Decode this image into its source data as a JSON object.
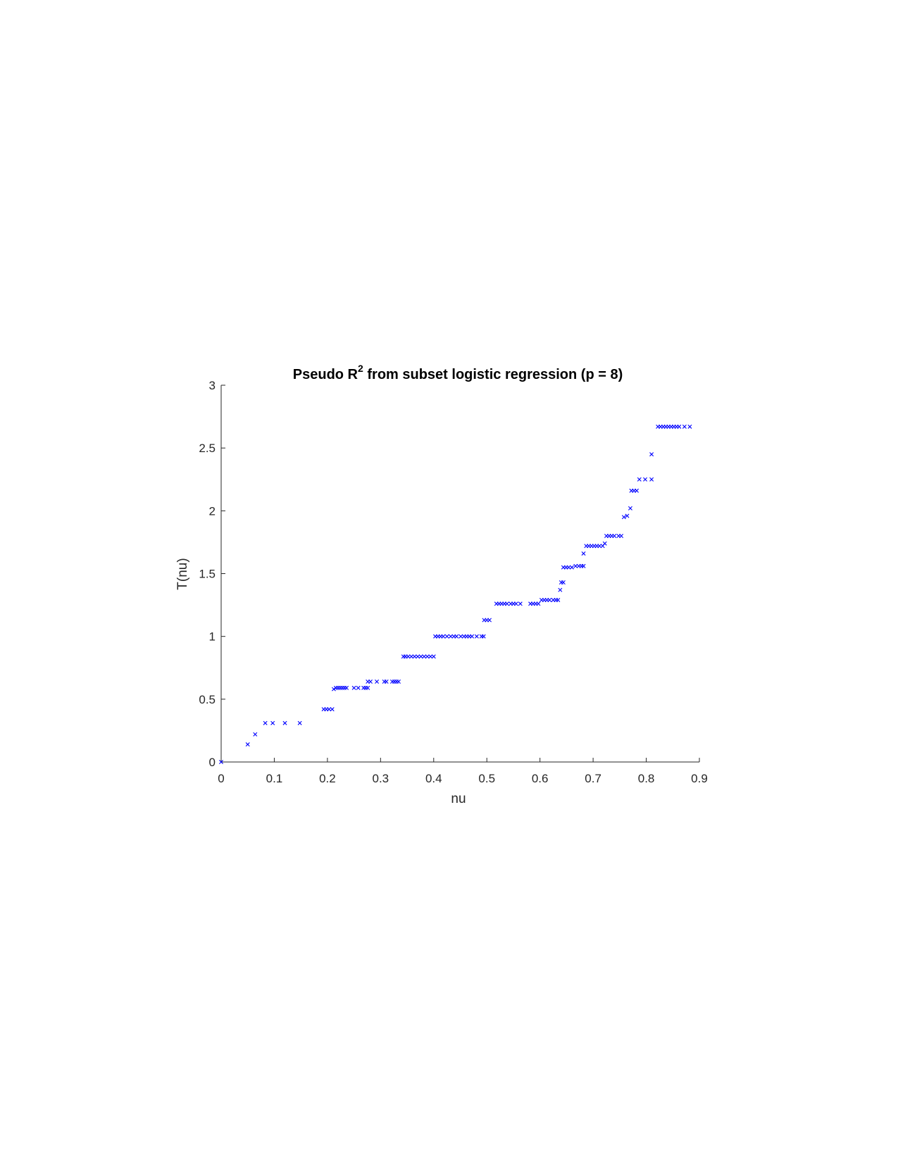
{
  "chart_data": {
    "type": "scatter",
    "title": {
      "prefix": "Pseudo R",
      "superscript": "2",
      "suffix": " from subset logistic regression (p = 8)"
    },
    "xlabel": "nu",
    "ylabel": "T(nu)",
    "xlim": [
      0,
      0.9
    ],
    "ylim": [
      0,
      3
    ],
    "x_ticks": [
      "0",
      "0.1",
      "0.2",
      "0.3",
      "0.4",
      "0.5",
      "0.6",
      "0.7",
      "0.8",
      "0.9"
    ],
    "y_ticks": [
      "0",
      "0.5",
      "1",
      "1.5",
      "2",
      "2.5",
      "3"
    ],
    "grid": false,
    "marker": "x",
    "marker_color": "#0000ff",
    "points": [
      [
        0.0,
        0.0
      ],
      [
        0.05,
        0.14
      ],
      [
        0.064,
        0.22
      ],
      [
        0.083,
        0.31
      ],
      [
        0.097,
        0.31
      ],
      [
        0.12,
        0.31
      ],
      [
        0.148,
        0.31
      ],
      [
        0.193,
        0.42
      ],
      [
        0.198,
        0.42
      ],
      [
        0.203,
        0.42
      ],
      [
        0.209,
        0.42
      ],
      [
        0.212,
        0.58
      ],
      [
        0.216,
        0.59
      ],
      [
        0.22,
        0.59
      ],
      [
        0.224,
        0.59
      ],
      [
        0.228,
        0.59
      ],
      [
        0.232,
        0.59
      ],
      [
        0.236,
        0.59
      ],
      [
        0.25,
        0.59
      ],
      [
        0.258,
        0.59
      ],
      [
        0.268,
        0.59
      ],
      [
        0.272,
        0.59
      ],
      [
        0.276,
        0.59
      ],
      [
        0.276,
        0.64
      ],
      [
        0.281,
        0.64
      ],
      [
        0.293,
        0.64
      ],
      [
        0.307,
        0.64
      ],
      [
        0.311,
        0.64
      ],
      [
        0.322,
        0.64
      ],
      [
        0.326,
        0.64
      ],
      [
        0.33,
        0.64
      ],
      [
        0.334,
        0.64
      ],
      [
        0.343,
        0.84
      ],
      [
        0.347,
        0.84
      ],
      [
        0.352,
        0.84
      ],
      [
        0.358,
        0.84
      ],
      [
        0.364,
        0.84
      ],
      [
        0.37,
        0.84
      ],
      [
        0.376,
        0.84
      ],
      [
        0.382,
        0.84
      ],
      [
        0.388,
        0.84
      ],
      [
        0.394,
        0.84
      ],
      [
        0.4,
        0.84
      ],
      [
        0.403,
        1.0
      ],
      [
        0.408,
        1.0
      ],
      [
        0.413,
        1.0
      ],
      [
        0.418,
        1.0
      ],
      [
        0.425,
        1.0
      ],
      [
        0.432,
        1.0
      ],
      [
        0.438,
        1.0
      ],
      [
        0.443,
        1.0
      ],
      [
        0.451,
        1.0
      ],
      [
        0.457,
        1.0
      ],
      [
        0.462,
        1.0
      ],
      [
        0.467,
        1.0
      ],
      [
        0.472,
        1.0
      ],
      [
        0.481,
        1.0
      ],
      [
        0.49,
        1.0
      ],
      [
        0.494,
        1.0
      ],
      [
        0.495,
        1.13
      ],
      [
        0.5,
        1.13
      ],
      [
        0.505,
        1.13
      ],
      [
        0.518,
        1.26
      ],
      [
        0.523,
        1.26
      ],
      [
        0.528,
        1.26
      ],
      [
        0.533,
        1.26
      ],
      [
        0.538,
        1.26
      ],
      [
        0.545,
        1.26
      ],
      [
        0.55,
        1.26
      ],
      [
        0.555,
        1.26
      ],
      [
        0.563,
        1.26
      ],
      [
        0.582,
        1.26
      ],
      [
        0.587,
        1.26
      ],
      [
        0.592,
        1.26
      ],
      [
        0.597,
        1.26
      ],
      [
        0.603,
        1.29
      ],
      [
        0.608,
        1.29
      ],
      [
        0.613,
        1.29
      ],
      [
        0.618,
        1.29
      ],
      [
        0.625,
        1.29
      ],
      [
        0.63,
        1.29
      ],
      [
        0.634,
        1.29
      ],
      [
        0.638,
        1.37
      ],
      [
        0.64,
        1.43
      ],
      [
        0.644,
        1.43
      ],
      [
        0.644,
        1.55
      ],
      [
        0.649,
        1.55
      ],
      [
        0.654,
        1.55
      ],
      [
        0.66,
        1.55
      ],
      [
        0.667,
        1.56
      ],
      [
        0.673,
        1.56
      ],
      [
        0.678,
        1.56
      ],
      [
        0.682,
        1.56
      ],
      [
        0.682,
        1.66
      ],
      [
        0.687,
        1.72
      ],
      [
        0.692,
        1.72
      ],
      [
        0.697,
        1.72
      ],
      [
        0.702,
        1.72
      ],
      [
        0.707,
        1.72
      ],
      [
        0.712,
        1.72
      ],
      [
        0.718,
        1.72
      ],
      [
        0.722,
        1.74
      ],
      [
        0.725,
        1.8
      ],
      [
        0.73,
        1.8
      ],
      [
        0.735,
        1.8
      ],
      [
        0.74,
        1.8
      ],
      [
        0.748,
        1.8
      ],
      [
        0.753,
        1.8
      ],
      [
        0.758,
        1.95
      ],
      [
        0.764,
        1.96
      ],
      [
        0.77,
        2.02
      ],
      [
        0.772,
        2.16
      ],
      [
        0.777,
        2.16
      ],
      [
        0.782,
        2.16
      ],
      [
        0.787,
        2.25
      ],
      [
        0.798,
        2.25
      ],
      [
        0.81,
        2.25
      ],
      [
        0.81,
        2.45
      ],
      [
        0.822,
        2.67
      ],
      [
        0.827,
        2.67
      ],
      [
        0.832,
        2.67
      ],
      [
        0.837,
        2.67
      ],
      [
        0.842,
        2.67
      ],
      [
        0.847,
        2.67
      ],
      [
        0.852,
        2.67
      ],
      [
        0.857,
        2.67
      ],
      [
        0.862,
        2.67
      ],
      [
        0.872,
        2.67
      ],
      [
        0.882,
        2.67
      ]
    ]
  }
}
